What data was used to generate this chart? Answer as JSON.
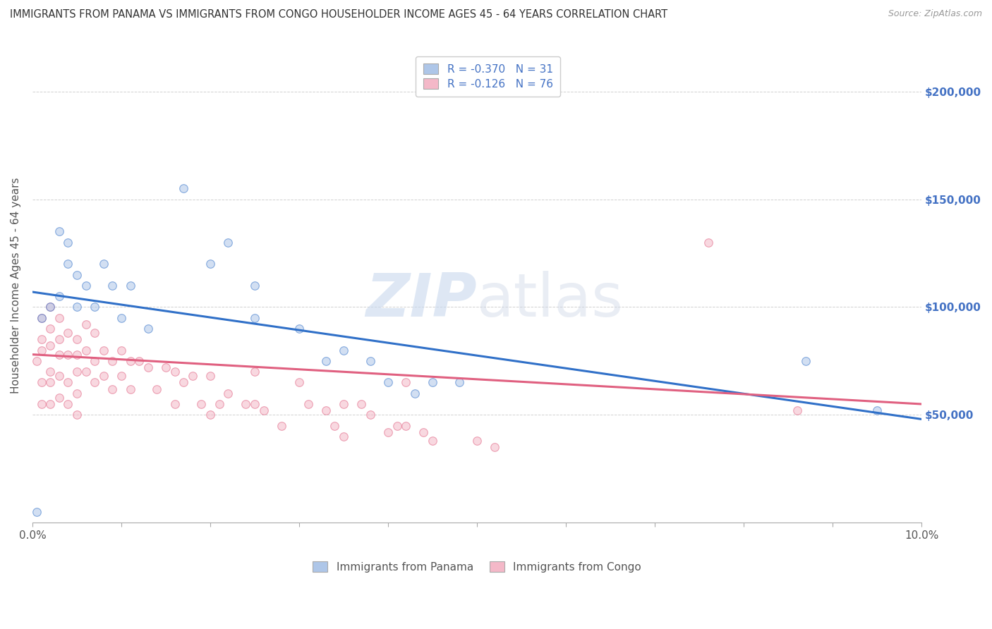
{
  "title": "IMMIGRANTS FROM PANAMA VS IMMIGRANTS FROM CONGO HOUSEHOLDER INCOME AGES 45 - 64 YEARS CORRELATION CHART",
  "source": "Source: ZipAtlas.com",
  "ylabel": "Householder Income Ages 45 - 64 years",
  "xlim": [
    0,
    0.1
  ],
  "ylim": [
    0,
    220000
  ],
  "ytick_values_right": [
    50000,
    100000,
    150000,
    200000
  ],
  "ytick_labels_right": [
    "$50,000",
    "$100,000",
    "$150,000",
    "$200,000"
  ],
  "panama_color": "#aec6e8",
  "congo_color": "#f4b8c8",
  "panama_line_color": "#3070c8",
  "congo_line_color": "#e06080",
  "legend_R_panama": "R = -0.370",
  "legend_N_panama": "N = 31",
  "legend_R_congo": "R = -0.126",
  "legend_N_congo": "N = 76",
  "watermark_zip": "ZIP",
  "watermark_atlas": "atlas",
  "panama_x": [
    0.0005,
    0.001,
    0.002,
    0.003,
    0.003,
    0.004,
    0.004,
    0.005,
    0.005,
    0.006,
    0.007,
    0.008,
    0.009,
    0.01,
    0.011,
    0.013,
    0.017,
    0.02,
    0.022,
    0.025,
    0.025,
    0.03,
    0.033,
    0.035,
    0.038,
    0.04,
    0.043,
    0.045,
    0.048,
    0.087,
    0.095
  ],
  "panama_y": [
    5000,
    95000,
    100000,
    105000,
    135000,
    130000,
    120000,
    100000,
    115000,
    110000,
    100000,
    120000,
    110000,
    95000,
    110000,
    90000,
    155000,
    120000,
    130000,
    110000,
    95000,
    90000,
    75000,
    80000,
    75000,
    65000,
    60000,
    65000,
    65000,
    75000,
    52000
  ],
  "congo_x": [
    0.0005,
    0.001,
    0.001,
    0.001,
    0.001,
    0.001,
    0.002,
    0.002,
    0.002,
    0.002,
    0.002,
    0.002,
    0.003,
    0.003,
    0.003,
    0.003,
    0.003,
    0.004,
    0.004,
    0.004,
    0.004,
    0.005,
    0.005,
    0.005,
    0.005,
    0.005,
    0.006,
    0.006,
    0.006,
    0.007,
    0.007,
    0.007,
    0.008,
    0.008,
    0.009,
    0.009,
    0.01,
    0.01,
    0.011,
    0.011,
    0.012,
    0.013,
    0.014,
    0.015,
    0.016,
    0.016,
    0.017,
    0.018,
    0.019,
    0.02,
    0.02,
    0.021,
    0.022,
    0.024,
    0.025,
    0.025,
    0.026,
    0.028,
    0.03,
    0.031,
    0.033,
    0.034,
    0.035,
    0.035,
    0.037,
    0.038,
    0.04,
    0.041,
    0.042,
    0.042,
    0.044,
    0.045,
    0.05,
    0.052,
    0.076,
    0.086
  ],
  "congo_y": [
    75000,
    95000,
    85000,
    80000,
    65000,
    55000,
    100000,
    90000,
    82000,
    70000,
    65000,
    55000,
    95000,
    85000,
    78000,
    68000,
    58000,
    88000,
    78000,
    65000,
    55000,
    85000,
    78000,
    70000,
    60000,
    50000,
    92000,
    80000,
    70000,
    88000,
    75000,
    65000,
    80000,
    68000,
    75000,
    62000,
    80000,
    68000,
    75000,
    62000,
    75000,
    72000,
    62000,
    72000,
    70000,
    55000,
    65000,
    68000,
    55000,
    68000,
    50000,
    55000,
    60000,
    55000,
    70000,
    55000,
    52000,
    45000,
    65000,
    55000,
    52000,
    45000,
    55000,
    40000,
    55000,
    50000,
    42000,
    45000,
    65000,
    45000,
    42000,
    38000,
    38000,
    35000,
    130000,
    52000
  ],
  "background_color": "#ffffff",
  "grid_color": "#d0d0d0",
  "title_color": "#333333",
  "right_label_color": "#4472c4",
  "marker_size": 70,
  "marker_alpha": 0.55,
  "marker_edge_width": 0.8,
  "blue_line_x0": 0.0,
  "blue_line_y0": 107000,
  "blue_line_x1": 0.1,
  "blue_line_y1": 48000,
  "pink_line_x0": 0.0,
  "pink_line_y0": 78000,
  "pink_line_x1": 0.1,
  "pink_line_y1": 55000
}
